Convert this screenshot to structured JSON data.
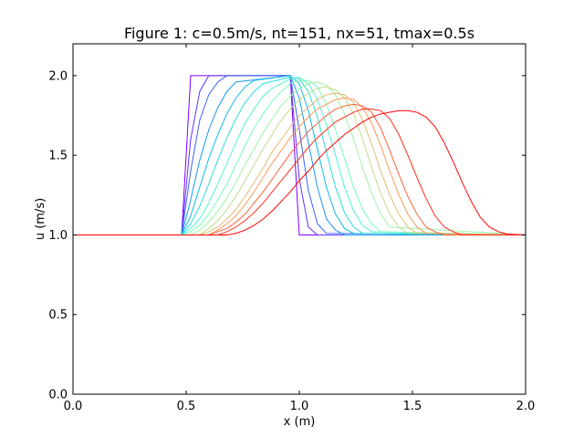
{
  "chart_data": {
    "type": "line",
    "title": "Figure 1: c=0.5m/s, nt=151, nx=51, tmax=0.5s",
    "xlabel": "x (m)",
    "ylabel": "u (m/s)",
    "xlim": [
      0.0,
      2.0
    ],
    "ylim": [
      0.0,
      2.2
    ],
    "xticks": [
      "0.0",
      "0.5",
      "1.0",
      "1.5",
      "2.0"
    ],
    "yticks": [
      "0.0",
      "0.5",
      "1.0",
      "1.5",
      "2.0"
    ],
    "grid": false,
    "colormap": "rainbow",
    "series": [
      {
        "color": "#8000ff",
        "x": [
          0.0,
          0.44,
          0.48,
          0.52,
          0.96,
          1.0,
          2.0
        ],
        "y": [
          1.0,
          1.0,
          1.0,
          2.0,
          2.0,
          1.0,
          1.0
        ]
      },
      {
        "color": "#5d35fd",
        "x": [
          0.0,
          0.44,
          0.48,
          0.52,
          0.56,
          0.6,
          0.96,
          1.0,
          1.04,
          1.08,
          2.0
        ],
        "y": [
          1.0,
          1.0,
          1.0,
          1.6,
          1.9,
          2.0,
          2.0,
          1.35,
          1.05,
          1.0,
          1.0
        ]
      },
      {
        "color": "#3a63f9",
        "x": [
          0.0,
          0.44,
          0.48,
          0.52,
          0.56,
          0.6,
          0.64,
          0.68,
          0.96,
          1.0,
          1.04,
          1.08,
          1.12,
          2.0
        ],
        "y": [
          1.0,
          1.0,
          1.0,
          1.4,
          1.72,
          1.88,
          1.96,
          2.0,
          2.0,
          1.66,
          1.28,
          1.07,
          1.01,
          1.0
        ]
      },
      {
        "color": "#1996f3",
        "x": [
          0.0,
          0.44,
          0.48,
          0.52,
          0.56,
          0.6,
          0.64,
          0.68,
          0.72,
          0.96,
          1.0,
          1.04,
          1.08,
          1.12,
          1.16,
          1.2,
          2.0
        ],
        "y": [
          1.0,
          1.0,
          1.0,
          1.22,
          1.47,
          1.66,
          1.8,
          1.9,
          1.96,
          2.0,
          1.86,
          1.58,
          1.3,
          1.1,
          1.03,
          1.0,
          1.0
        ]
      },
      {
        "color": "#0cbbe9",
        "x": [
          0.0,
          0.48,
          0.52,
          0.56,
          0.6,
          0.64,
          0.68,
          0.72,
          0.76,
          0.8,
          0.96,
          1.0,
          1.04,
          1.08,
          1.12,
          1.16,
          1.2,
          1.24,
          2.0
        ],
        "y": [
          1.0,
          1.0,
          1.12,
          1.3,
          1.48,
          1.63,
          1.76,
          1.86,
          1.93,
          1.97,
          2.0,
          1.95,
          1.78,
          1.54,
          1.3,
          1.13,
          1.04,
          1.01,
          1.0
        ]
      },
      {
        "color": "#2adddd",
        "x": [
          0.0,
          0.48,
          0.52,
          0.56,
          0.6,
          0.64,
          0.68,
          0.72,
          0.76,
          0.8,
          0.84,
          0.96,
          1.0,
          1.04,
          1.08,
          1.12,
          1.16,
          1.2,
          1.24,
          1.28,
          2.0
        ],
        "y": [
          1.0,
          1.0,
          1.07,
          1.18,
          1.32,
          1.47,
          1.61,
          1.73,
          1.83,
          1.9,
          1.95,
          1.99,
          1.98,
          1.9,
          1.74,
          1.52,
          1.3,
          1.14,
          1.05,
          1.01,
          1.0
        ]
      },
      {
        "color": "#4ff4cf",
        "x": [
          0.0,
          0.48,
          0.52,
          0.56,
          0.6,
          0.64,
          0.68,
          0.72,
          0.76,
          0.8,
          0.84,
          0.88,
          0.96,
          1.0,
          1.04,
          1.08,
          1.12,
          1.16,
          1.2,
          1.24,
          1.28,
          1.32,
          2.0
        ],
        "y": [
          1.0,
          1.0,
          1.04,
          1.1,
          1.2,
          1.32,
          1.45,
          1.58,
          1.7,
          1.79,
          1.87,
          1.92,
          1.98,
          1.99,
          1.95,
          1.85,
          1.69,
          1.5,
          1.3,
          1.15,
          1.06,
          1.02,
          1.0
        ]
      },
      {
        "color": "#76ffb9",
        "x": [
          0.0,
          0.48,
          0.52,
          0.56,
          0.6,
          0.64,
          0.68,
          0.72,
          0.76,
          0.8,
          0.84,
          0.88,
          0.92,
          0.96,
          1.0,
          1.04,
          1.08,
          1.12,
          1.16,
          1.2,
          1.24,
          1.28,
          1.32,
          1.36,
          2.0
        ],
        "y": [
          1.0,
          1.0,
          1.02,
          1.06,
          1.13,
          1.22,
          1.32,
          1.44,
          1.56,
          1.67,
          1.76,
          1.84,
          1.9,
          1.95,
          1.97,
          1.97,
          1.93,
          1.82,
          1.66,
          1.48,
          1.3,
          1.16,
          1.07,
          1.02,
          1.0
        ]
      },
      {
        "color": "#9cf3a4",
        "x": [
          0.0,
          0.52,
          0.56,
          0.6,
          0.64,
          0.68,
          0.72,
          0.76,
          0.8,
          0.84,
          0.88,
          0.92,
          0.96,
          1.0,
          1.04,
          1.08,
          1.12,
          1.16,
          1.2,
          1.24,
          1.28,
          1.32,
          1.36,
          1.4,
          2.0
        ],
        "y": [
          1.0,
          1.0,
          1.03,
          1.08,
          1.15,
          1.23,
          1.33,
          1.44,
          1.54,
          1.64,
          1.73,
          1.81,
          1.87,
          1.92,
          1.95,
          1.96,
          1.94,
          1.88,
          1.76,
          1.6,
          1.42,
          1.26,
          1.13,
          1.05,
          1.0
        ]
      },
      {
        "color": "#c0dd8b",
        "x": [
          0.0,
          0.56,
          0.6,
          0.64,
          0.68,
          0.72,
          0.76,
          0.8,
          0.84,
          0.88,
          0.92,
          0.96,
          1.0,
          1.04,
          1.08,
          1.12,
          1.16,
          1.2,
          1.24,
          1.28,
          1.32,
          1.36,
          1.4,
          1.44,
          1.48,
          2.0
        ],
        "y": [
          1.0,
          1.0,
          1.04,
          1.09,
          1.16,
          1.24,
          1.34,
          1.44,
          1.54,
          1.63,
          1.72,
          1.79,
          1.85,
          1.89,
          1.92,
          1.93,
          1.91,
          1.86,
          1.76,
          1.6,
          1.42,
          1.26,
          1.13,
          1.05,
          1.01,
          1.0
        ]
      },
      {
        "color": "#e4bb71",
        "x": [
          0.0,
          0.56,
          0.6,
          0.64,
          0.68,
          0.72,
          0.76,
          0.8,
          0.84,
          0.88,
          0.92,
          0.96,
          1.0,
          1.04,
          1.08,
          1.12,
          1.16,
          1.2,
          1.24,
          1.28,
          1.32,
          1.36,
          1.4,
          1.44,
          1.48,
          1.52,
          2.0
        ],
        "y": [
          1.0,
          1.0,
          1.02,
          1.05,
          1.1,
          1.16,
          1.24,
          1.33,
          1.42,
          1.52,
          1.6,
          1.68,
          1.75,
          1.8,
          1.85,
          1.88,
          1.89,
          1.88,
          1.83,
          1.72,
          1.57,
          1.4,
          1.25,
          1.13,
          1.05,
          1.01,
          1.0
        ]
      },
      {
        "color": "#ff9858",
        "x": [
          0.0,
          0.6,
          0.64,
          0.68,
          0.72,
          0.76,
          0.8,
          0.84,
          0.88,
          0.92,
          0.96,
          1.0,
          1.04,
          1.08,
          1.12,
          1.16,
          1.2,
          1.24,
          1.28,
          1.32,
          1.36,
          1.4,
          1.44,
          1.48,
          1.52,
          1.56,
          2.0
        ],
        "y": [
          1.0,
          1.0,
          1.03,
          1.07,
          1.12,
          1.19,
          1.27,
          1.36,
          1.45,
          1.53,
          1.61,
          1.68,
          1.74,
          1.79,
          1.82,
          1.85,
          1.86,
          1.85,
          1.8,
          1.7,
          1.56,
          1.4,
          1.25,
          1.13,
          1.05,
          1.01,
          1.0
        ]
      },
      {
        "color": "#ff6239",
        "x": [
          0.0,
          0.6,
          0.64,
          0.68,
          0.72,
          0.76,
          0.8,
          0.84,
          0.88,
          0.92,
          0.96,
          1.0,
          1.04,
          1.08,
          1.12,
          1.16,
          1.2,
          1.24,
          1.28,
          1.32,
          1.36,
          1.4,
          1.44,
          1.48,
          1.52,
          1.56,
          1.6,
          1.64,
          2.0
        ],
        "y": [
          1.0,
          1.0,
          1.02,
          1.04,
          1.08,
          1.13,
          1.2,
          1.27,
          1.35,
          1.43,
          1.51,
          1.58,
          1.65,
          1.7,
          1.75,
          1.79,
          1.81,
          1.82,
          1.81,
          1.77,
          1.67,
          1.53,
          1.38,
          1.24,
          1.13,
          1.05,
          1.02,
          1.0,
          1.0
        ]
      },
      {
        "color": "#ff2c16",
        "x": [
          0.0,
          0.64,
          0.68,
          0.72,
          0.76,
          0.8,
          0.84,
          0.88,
          0.92,
          0.96,
          1.0,
          1.04,
          1.08,
          1.12,
          1.16,
          1.2,
          1.24,
          1.28,
          1.32,
          1.36,
          1.4,
          1.44,
          1.48,
          1.52,
          1.56,
          1.6,
          1.64,
          1.68,
          1.72,
          2.0
        ],
        "y": [
          1.0,
          1.0,
          1.02,
          1.05,
          1.09,
          1.14,
          1.2,
          1.27,
          1.34,
          1.41,
          1.48,
          1.55,
          1.61,
          1.66,
          1.71,
          1.74,
          1.77,
          1.79,
          1.79,
          1.78,
          1.73,
          1.63,
          1.5,
          1.36,
          1.23,
          1.12,
          1.05,
          1.02,
          1.0,
          1.0
        ]
      },
      {
        "color": "#ff0000",
        "x": [
          0.0,
          0.68,
          0.72,
          0.76,
          0.8,
          0.84,
          0.88,
          0.92,
          0.96,
          1.0,
          1.04,
          1.08,
          1.12,
          1.16,
          1.2,
          1.24,
          1.28,
          1.32,
          1.36,
          1.4,
          1.44,
          1.48,
          1.52,
          1.56,
          1.6,
          1.64,
          1.68,
          1.72,
          1.76,
          1.8,
          1.84,
          1.88,
          1.92,
          2.0
        ],
        "y": [
          1.0,
          1.0,
          1.01,
          1.03,
          1.06,
          1.1,
          1.15,
          1.21,
          1.27,
          1.34,
          1.4,
          1.47,
          1.53,
          1.58,
          1.63,
          1.67,
          1.71,
          1.74,
          1.76,
          1.77,
          1.78,
          1.78,
          1.77,
          1.74,
          1.68,
          1.58,
          1.46,
          1.33,
          1.21,
          1.11,
          1.05,
          1.02,
          1.005,
          1.0
        ]
      }
    ]
  }
}
